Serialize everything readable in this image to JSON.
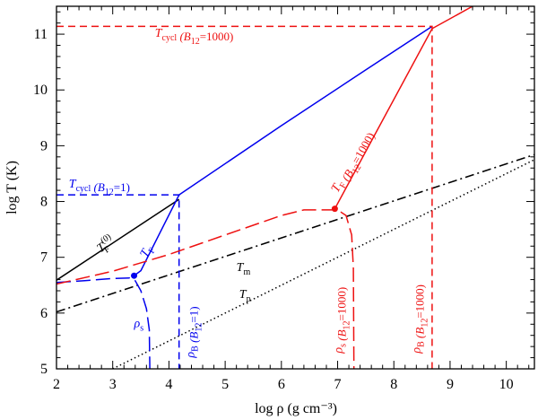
{
  "chart_data": {
    "type": "line",
    "xlabel": "log ρ (g cm⁻³)",
    "ylabel": "log T (K)",
    "xlim": [
      2,
      10.5
    ],
    "ylim": [
      5,
      11.5
    ],
    "xticks": [
      2,
      3,
      4,
      5,
      6,
      7,
      8,
      9,
      10
    ],
    "yticks": [
      5,
      6,
      7,
      8,
      9,
      10,
      11
    ],
    "colors": {
      "black": "#000000",
      "blue": "#0000ee",
      "red": "#ee1111"
    },
    "series": [
      {
        "name": "T_F^(0)",
        "color": "black",
        "style": "solid",
        "points": [
          [
            2.0,
            6.59
          ],
          [
            4.18,
            8.04
          ]
        ]
      },
      {
        "name": "T_F (B12=1)",
        "color": "blue",
        "style": "solid",
        "points": [
          [
            3.38,
            6.67
          ],
          [
            3.5,
            6.76
          ],
          [
            4.18,
            8.12
          ],
          [
            6.0,
            9.36
          ],
          [
            7.5,
            10.36
          ],
          [
            8.68,
            11.14
          ]
        ]
      },
      {
        "name": "T_F (B12=1000)",
        "color": "red",
        "style": "solid",
        "points": [
          [
            6.95,
            7.87
          ],
          [
            8.68,
            11.1
          ],
          [
            9.4,
            11.5
          ]
        ]
      },
      {
        "name": "T_m",
        "color": "black",
        "style": "dashdot",
        "points": [
          [
            2.0,
            6.02
          ],
          [
            10.5,
            8.84
          ]
        ]
      },
      {
        "name": "T_p",
        "color": "black",
        "style": "dotted",
        "points": [
          [
            3.0,
            5.0
          ],
          [
            10.5,
            8.75
          ]
        ]
      },
      {
        "name": "T_cycl (B12=1)",
        "color": "blue",
        "style": "dashed",
        "points": [
          [
            2.0,
            8.12
          ],
          [
            4.18,
            8.12
          ],
          [
            4.18,
            5.0
          ]
        ]
      },
      {
        "name": "T_cycl (B12=1000)",
        "color": "red",
        "style": "dashed",
        "points": [
          [
            2.0,
            11.14
          ],
          [
            8.68,
            11.14
          ],
          [
            8.68,
            5.0
          ]
        ]
      },
      {
        "name": "rho_s (B12=1)",
        "color": "blue",
        "style": "longdash",
        "points": [
          [
            2.0,
            6.55
          ],
          [
            2.5,
            6.58
          ],
          [
            3.0,
            6.62
          ],
          [
            3.3,
            6.63
          ],
          [
            3.4,
            6.58
          ],
          [
            3.5,
            6.4
          ],
          [
            3.6,
            6.08
          ],
          [
            3.65,
            5.7
          ],
          [
            3.66,
            5.0
          ]
        ]
      },
      {
        "name": "rho_s (B12=1000)",
        "color": "red",
        "style": "longdash",
        "points": [
          [
            2.0,
            6.52
          ],
          [
            3.0,
            6.75
          ],
          [
            4.0,
            7.05
          ],
          [
            5.0,
            7.4
          ],
          [
            6.0,
            7.75
          ],
          [
            6.4,
            7.85
          ],
          [
            6.8,
            7.85
          ],
          [
            7.0,
            7.85
          ],
          [
            7.15,
            7.75
          ],
          [
            7.25,
            7.4
          ],
          [
            7.28,
            6.8
          ],
          [
            7.29,
            5.0
          ]
        ]
      }
    ],
    "points": [
      {
        "color": "blue",
        "x": 3.38,
        "y": 6.67
      },
      {
        "color": "red",
        "x": 6.95,
        "y": 7.87
      }
    ],
    "annotations": [
      {
        "key": "tcycl1000",
        "main": "T",
        "sub": "cycl",
        "suffix": " (B",
        "sub2": "12",
        "suffix2": "=1000)",
        "color": "red",
        "x": 3.75,
        "y": 10.95,
        "rotate": false
      },
      {
        "key": "tcycl1",
        "main": "T",
        "sub": "cycl",
        "suffix": " (B",
        "sub2": "12",
        "suffix2": "=1)",
        "color": "blue",
        "x": 2.22,
        "y": 8.25,
        "rotate": false
      },
      {
        "key": "tf1000",
        "main": "T",
        "sub": "F",
        "suffix": " (B",
        "sub2": "12",
        "suffix2": "=1000)",
        "color": "red",
        "x": 7.0,
        "y": 8.15,
        "rotate": true,
        "angle": -60
      },
      {
        "key": "tf0",
        "main": "T",
        "sub": "F",
        "sup": "(0)",
        "suffix": "",
        "color": "black",
        "x": 2.78,
        "y": 7.08,
        "rotate": true,
        "angle": -33
      },
      {
        "key": "tfblue",
        "main": "T",
        "sub": "F",
        "suffix": "",
        "color": "blue",
        "x": 3.6,
        "y": 6.98,
        "rotate": true,
        "angle": -60
      },
      {
        "key": "tm",
        "main": "T",
        "sub": "m",
        "suffix": "",
        "color": "black",
        "x": 5.2,
        "y": 6.75,
        "rotate": false
      },
      {
        "key": "tp",
        "main": "T",
        "sub": "p",
        "suffix": "",
        "color": "black",
        "x": 5.25,
        "y": 6.27,
        "rotate": false
      },
      {
        "key": "rhos1",
        "main": "ρ",
        "sub": "s",
        "suffix": "",
        "color": "blue",
        "x": 3.38,
        "y": 5.75,
        "rotate": false
      },
      {
        "key": "rhob1",
        "main": "ρ",
        "sub": "B",
        "suffix": " (B",
        "sub2": "12",
        "suffix2": "=1)",
        "color": "blue",
        "x": 4.45,
        "y": 5.2,
        "rotate": true,
        "angle": -90
      },
      {
        "key": "rhos1000",
        "main": "ρ",
        "sub": "s",
        "suffix": " (B",
        "sub2": "12",
        "suffix2": "=1000)",
        "color": "red",
        "x": 7.08,
        "y": 5.28,
        "rotate": true,
        "angle": -90
      },
      {
        "key": "rhob1000",
        "main": "ρ",
        "sub": "B",
        "suffix": " (B",
        "sub2": "12",
        "suffix2": "=1000)",
        "color": "red",
        "x": 8.47,
        "y": 5.28,
        "rotate": true,
        "angle": -90
      }
    ]
  }
}
